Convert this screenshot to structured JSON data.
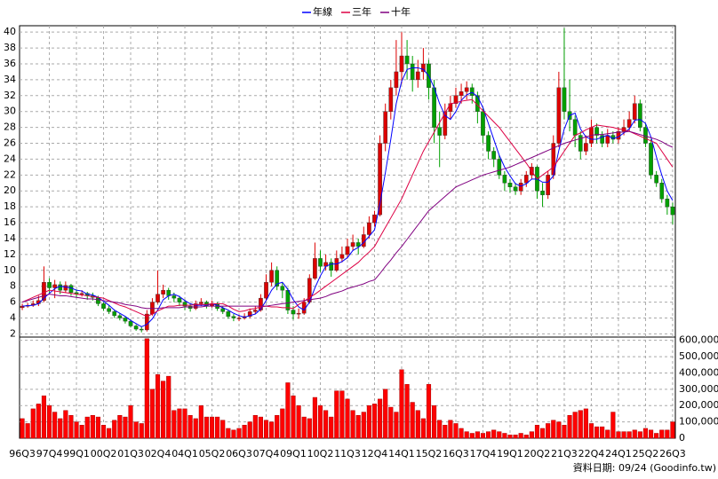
{
  "chart_data": {
    "type": "candlestick",
    "footnote": "資料日期: 09/24 (Goodinfo.tw)",
    "grid": true,
    "up_color": "#dd0000",
    "down_color": "#00a000",
    "categories": [
      "96Q3",
      null,
      null,
      null,
      null,
      "97Q4",
      null,
      null,
      null,
      null,
      "99Q1",
      null,
      null,
      null,
      null,
      "00Q2",
      null,
      null,
      null,
      null,
      "01Q3",
      null,
      null,
      null,
      null,
      "02Q4",
      null,
      null,
      null,
      null,
      "04Q1",
      null,
      null,
      null,
      null,
      "05Q2",
      null,
      null,
      null,
      null,
      "06Q3",
      null,
      null,
      null,
      null,
      "07Q4",
      null,
      null,
      null,
      null,
      "09Q1",
      null,
      null,
      null,
      null,
      "10Q2",
      null,
      null,
      null,
      null,
      "11Q3",
      null,
      null,
      null,
      null,
      "12Q4",
      null,
      null,
      null,
      null,
      "14Q1",
      null,
      null,
      null,
      null,
      "15Q2",
      null,
      null,
      null,
      null,
      "16Q3",
      null,
      null,
      null,
      null,
      "17Q4",
      null,
      null,
      null,
      null,
      "19Q1",
      null,
      null,
      null,
      null,
      "20Q2",
      null,
      null,
      null,
      null,
      "21Q3",
      null,
      null,
      null,
      null,
      "22Q4",
      null,
      null,
      null,
      null,
      "24Q1",
      null,
      null,
      null,
      null,
      "25Q2",
      null,
      null,
      null,
      null,
      "26Q3"
    ],
    "ohlc": [
      [
        5.3,
        5.8,
        5.0,
        5.5
      ],
      [
        5.5,
        5.9,
        5.3,
        5.6
      ],
      [
        5.6,
        6.2,
        5.4,
        5.8
      ],
      [
        5.8,
        6.8,
        5.5,
        6.2
      ],
      [
        6.2,
        10.5,
        6.0,
        8.5
      ],
      [
        8.5,
        9.0,
        7.2,
        7.8
      ],
      [
        7.8,
        8.8,
        6.5,
        8.2
      ],
      [
        8.2,
        8.6,
        7.0,
        7.5
      ],
      [
        7.5,
        8.6,
        7.2,
        8.1
      ],
      [
        8.1,
        8.3,
        6.8,
        7.2
      ],
      [
        7.2,
        7.6,
        6.6,
        7.0
      ],
      [
        7.0,
        7.5,
        6.7,
        7.1
      ],
      [
        7.1,
        7.3,
        6.3,
        6.8
      ],
      [
        6.8,
        7.2,
        6.2,
        6.6
      ],
      [
        6.6,
        6.8,
        5.5,
        5.8
      ],
      [
        5.8,
        6.0,
        4.9,
        5.2
      ],
      [
        5.2,
        5.6,
        4.5,
        4.8
      ],
      [
        4.8,
        5.0,
        4.0,
        4.3
      ],
      [
        4.3,
        4.6,
        3.7,
        4.0
      ],
      [
        4.0,
        4.2,
        3.3,
        3.6
      ],
      [
        3.6,
        3.8,
        2.8,
        3.0
      ],
      [
        3.0,
        3.2,
        2.4,
        2.6
      ],
      [
        2.6,
        2.9,
        2.2,
        2.5
      ],
      [
        2.5,
        5.0,
        2.3,
        4.5
      ],
      [
        4.5,
        6.5,
        4.3,
        6.0
      ],
      [
        6.0,
        10.0,
        5.8,
        7.0
      ],
      [
        7.0,
        8.2,
        6.5,
        7.5
      ],
      [
        7.5,
        7.8,
        6.3,
        6.8
      ],
      [
        6.8,
        7.2,
        6.0,
        6.5
      ],
      [
        6.5,
        6.8,
        5.5,
        6.0
      ],
      [
        6.0,
        6.3,
        5.0,
        5.5
      ],
      [
        5.5,
        5.8,
        4.8,
        5.2
      ],
      [
        5.2,
        6.2,
        5.0,
        5.8
      ],
      [
        5.8,
        6.5,
        5.5,
        6.0
      ],
      [
        6.0,
        6.2,
        5.2,
        5.5
      ],
      [
        5.5,
        6.2,
        5.3,
        5.8
      ],
      [
        5.8,
        6.0,
        4.9,
        5.2
      ],
      [
        5.2,
        5.5,
        4.5,
        4.8
      ],
      [
        4.8,
        5.0,
        3.9,
        4.2
      ],
      [
        4.2,
        4.5,
        3.6,
        4.0
      ],
      [
        4.0,
        4.4,
        3.6,
        4.0
      ],
      [
        4.0,
        4.6,
        3.8,
        4.2
      ],
      [
        4.2,
        5.2,
        4.0,
        4.8
      ],
      [
        4.8,
        5.5,
        4.5,
        5.0
      ],
      [
        5.0,
        7.0,
        4.8,
        6.5
      ],
      [
        6.5,
        9.5,
        6.2,
        8.5
      ],
      [
        8.5,
        11.0,
        8.0,
        10.0
      ],
      [
        10.0,
        10.5,
        7.5,
        8.0
      ],
      [
        8.0,
        8.5,
        6.5,
        7.5
      ],
      [
        7.5,
        7.8,
        4.5,
        5.0
      ],
      [
        5.0,
        5.5,
        3.8,
        4.5
      ],
      [
        4.5,
        5.2,
        3.9,
        4.6
      ],
      [
        4.6,
        6.5,
        4.4,
        6.0
      ],
      [
        6.0,
        9.5,
        5.8,
        9.0
      ],
      [
        9.0,
        13.5,
        8.8,
        11.5
      ],
      [
        11.5,
        12.5,
        9.8,
        10.5
      ],
      [
        10.5,
        12.0,
        10.0,
        11.0
      ],
      [
        11.0,
        11.5,
        9.2,
        10.0
      ],
      [
        10.0,
        12.5,
        9.8,
        11.5
      ],
      [
        11.5,
        13.0,
        11.0,
        12.0
      ],
      [
        12.0,
        14.0,
        11.5,
        13.0
      ],
      [
        13.0,
        14.5,
        12.5,
        13.5
      ],
      [
        13.5,
        14.0,
        12.0,
        13.0
      ],
      [
        13.0,
        15.5,
        12.8,
        14.5
      ],
      [
        14.5,
        16.8,
        14.0,
        16.0
      ],
      [
        16.0,
        17.5,
        15.5,
        17.0
      ],
      [
        17.0,
        27.0,
        16.8,
        26.0
      ],
      [
        26.0,
        31.0,
        25.0,
        30.0
      ],
      [
        30.0,
        34.0,
        29.0,
        33.0
      ],
      [
        33.0,
        39.0,
        32.0,
        35.0
      ],
      [
        35.0,
        40.0,
        33.5,
        37.0
      ],
      [
        37.0,
        39.0,
        34.0,
        36.0
      ],
      [
        36.0,
        37.0,
        32.5,
        34.0
      ],
      [
        34.0,
        36.5,
        33.0,
        35.0
      ],
      [
        35.0,
        38.0,
        34.0,
        36.0
      ],
      [
        36.0,
        36.5,
        31.5,
        33.0
      ],
      [
        33.0,
        34.0,
        26.0,
        28.0
      ],
      [
        28.0,
        30.0,
        23.0,
        27.0
      ],
      [
        27.0,
        31.0,
        26.5,
        30.0
      ],
      [
        30.0,
        32.0,
        29.0,
        31.0
      ],
      [
        31.0,
        33.0,
        30.5,
        32.0
      ],
      [
        32.0,
        33.5,
        31.0,
        32.5
      ],
      [
        32.5,
        33.8,
        31.5,
        33.0
      ],
      [
        33.0,
        33.5,
        31.0,
        32.0
      ],
      [
        32.0,
        32.5,
        28.5,
        30.0
      ],
      [
        30.0,
        30.5,
        26.0,
        27.0
      ],
      [
        27.0,
        27.5,
        24.0,
        25.0
      ],
      [
        25.0,
        25.5,
        23.0,
        24.0
      ],
      [
        24.0,
        24.5,
        21.5,
        22.0
      ],
      [
        22.0,
        22.5,
        20.0,
        21.0
      ],
      [
        21.0,
        21.5,
        19.8,
        20.5
      ],
      [
        20.5,
        21.0,
        19.5,
        20.0
      ],
      [
        20.0,
        21.5,
        19.5,
        21.0
      ],
      [
        21.0,
        22.5,
        20.5,
        22.0
      ],
      [
        22.0,
        23.5,
        21.5,
        23.0
      ],
      [
        23.0,
        23.2,
        19.0,
        20.0
      ],
      [
        20.0,
        21.0,
        18.0,
        19.5
      ],
      [
        19.5,
        22.5,
        19.0,
        22.0
      ],
      [
        22.0,
        27.0,
        21.5,
        26.0
      ],
      [
        26.0,
        35.0,
        25.5,
        33.0
      ],
      [
        33.0,
        40.5,
        29.0,
        30.0
      ],
      [
        30.0,
        34.0,
        27.5,
        29.0
      ],
      [
        29.0,
        29.5,
        25.5,
        27.0
      ],
      [
        27.0,
        27.5,
        24.0,
        25.0
      ],
      [
        25.0,
        27.0,
        24.5,
        26.0
      ],
      [
        26.0,
        29.0,
        25.5,
        28.0
      ],
      [
        28.0,
        28.5,
        26.0,
        27.0
      ],
      [
        27.0,
        27.5,
        25.5,
        26.0
      ],
      [
        26.0,
        27.8,
        25.5,
        27.0
      ],
      [
        27.0,
        27.5,
        26.0,
        26.5
      ],
      [
        26.5,
        28.0,
        26.0,
        27.5
      ],
      [
        27.5,
        29.0,
        27.0,
        28.0
      ],
      [
        28.0,
        30.0,
        27.5,
        29.0
      ],
      [
        29.0,
        32.0,
        28.5,
        31.0
      ],
      [
        31.0,
        31.5,
        27.5,
        28.0
      ],
      [
        28.0,
        28.5,
        25.5,
        26.0
      ],
      [
        26.0,
        26.5,
        21.5,
        22.0
      ],
      [
        22.0,
        22.5,
        20.5,
        21.0
      ],
      [
        21.0,
        21.5,
        18.5,
        19.0
      ],
      [
        19.0,
        19.5,
        17.0,
        18.0
      ],
      [
        18.0,
        18.5,
        15.8,
        17.0
      ]
    ],
    "ylim": [
      1.6,
      40.8
    ],
    "yticks": [
      2,
      4,
      6,
      8,
      10,
      12,
      14,
      16,
      18,
      20,
      22,
      24,
      26,
      28,
      30,
      32,
      34,
      36,
      38,
      40
    ],
    "series": [
      {
        "name": "年線",
        "color": "#0000ff",
        "values": [
          5.5,
          5.55,
          5.6,
          5.8,
          6.5,
          7.1,
          7.7,
          8.0,
          7.9,
          7.8,
          7.5,
          7.4,
          7.0,
          6.9,
          6.6,
          6.1,
          5.6,
          5.0,
          4.6,
          4.2,
          3.7,
          3.3,
          2.9,
          3.2,
          3.9,
          5.0,
          6.3,
          6.8,
          7.0,
          6.7,
          6.2,
          5.8,
          5.6,
          5.6,
          5.6,
          5.8,
          5.6,
          5.3,
          5.0,
          4.6,
          4.3,
          4.1,
          4.3,
          4.5,
          5.1,
          6.2,
          7.5,
          8.3,
          8.5,
          7.6,
          6.3,
          5.4,
          5.0,
          6.0,
          7.8,
          9.3,
          10.5,
          10.8,
          10.8,
          11.1,
          11.6,
          12.5,
          12.9,
          13.5,
          14.3,
          15.1,
          18.4,
          22.3,
          26.5,
          31.0,
          33.8,
          35.3,
          35.5,
          35.5,
          35.3,
          34.5,
          33.0,
          31.0,
          29.5,
          29.0,
          30.0,
          31.4,
          32.1,
          32.4,
          31.9,
          30.5,
          28.5,
          26.5,
          24.5,
          23.0,
          21.9,
          20.9,
          20.6,
          20.9,
          21.5,
          21.5,
          21.1,
          21.1,
          21.9,
          25.1,
          27.8,
          29.5,
          29.8,
          27.8,
          26.8,
          26.5,
          26.5,
          26.8,
          27.0,
          26.6,
          26.8,
          27.3,
          27.8,
          28.9,
          29.0,
          28.5,
          26.8,
          24.3,
          22.0,
          20.0,
          18.8
        ]
      },
      {
        "name": "三年",
        "color": "#dd0044",
        "values": [
          6.0,
          6.3,
          6.6,
          6.9,
          7.2,
          7.5,
          7.4,
          7.3,
          7.2,
          7.1,
          7.0,
          6.9,
          6.8,
          6.7,
          6.6,
          6.5,
          6.2,
          5.9,
          5.6,
          5.4,
          5.1,
          4.8,
          4.5,
          4.2,
          4.5,
          4.9,
          5.2,
          5.5,
          5.5,
          5.6,
          5.6,
          5.6,
          5.7,
          5.7,
          5.7,
          5.8,
          5.8,
          5.8,
          5.5,
          5.1,
          4.8,
          4.9,
          5.1,
          5.2,
          5.4,
          5.5,
          5.4,
          5.4,
          5.3,
          5.3,
          5.2,
          5.7,
          6.1,
          6.6,
          7.0,
          7.5,
          8.0,
          8.5,
          9.0,
          9.5,
          10.0,
          10.5,
          11.0,
          11.7,
          12.3,
          13.0,
          14.2,
          15.4,
          16.6,
          17.8,
          19.0,
          20.5,
          22.0,
          23.5,
          25.0,
          26.2,
          27.4,
          28.6,
          29.8,
          31.0,
          31.1,
          31.3,
          31.4,
          31.5,
          30.8,
          30.1,
          29.4,
          28.7,
          28.0,
          27.1,
          26.2,
          25.3,
          24.4,
          23.5,
          22.5,
          21.5,
          22.0,
          22.5,
          23.0,
          24.0,
          25.0,
          26.0,
          27.0,
          27.3,
          27.7,
          28.0,
          28.3,
          28.2,
          28.1,
          28.0,
          27.8,
          27.7,
          27.5,
          27.2,
          26.9,
          26.6,
          26.3,
          26.0,
          25.0,
          24.0,
          23.0
        ]
      },
      {
        "name": "十年",
        "color": "#800080",
        "values": [
          6.0,
          6.2,
          6.4,
          6.6,
          6.8,
          7.0,
          6.9,
          6.8,
          6.8,
          6.7,
          6.6,
          6.5,
          6.4,
          6.4,
          6.3,
          6.2,
          6.1,
          6.0,
          5.9,
          5.7,
          5.6,
          5.5,
          5.3,
          5.2,
          5.2,
          5.2,
          5.3,
          5.3,
          5.3,
          5.3,
          5.4,
          5.4,
          5.4,
          5.4,
          5.5,
          5.5,
          5.5,
          5.5,
          5.5,
          5.5,
          5.5,
          5.5,
          5.5,
          5.5,
          5.5,
          5.5,
          5.6,
          5.7,
          5.8,
          5.9,
          6.0,
          6.1,
          6.2,
          6.3,
          6.4,
          6.5,
          6.7,
          7.0,
          7.2,
          7.4,
          7.7,
          7.9,
          8.1,
          8.3,
          8.6,
          8.8,
          9.6,
          10.5,
          11.3,
          12.2,
          13.0,
          13.9,
          14.8,
          15.7,
          16.6,
          17.5,
          18.1,
          18.7,
          19.3,
          19.9,
          20.5,
          20.8,
          21.1,
          21.4,
          21.7,
          22.0,
          22.2,
          22.4,
          22.6,
          22.8,
          23.0,
          23.3,
          23.6,
          23.9,
          24.2,
          24.5,
          24.8,
          25.1,
          25.4,
          25.7,
          26.0,
          26.2,
          26.4,
          26.6,
          26.8,
          27.0,
          27.1,
          27.1,
          27.2,
          27.3,
          27.4,
          27.4,
          27.5,
          27.3,
          27.1,
          26.9,
          26.7,
          26.5,
          26.2,
          25.8,
          25.5
        ]
      }
    ],
    "volume": {
      "axis": "y2",
      "color": "#ff0000",
      "values": [
        120000,
        90000,
        180000,
        210000,
        260000,
        200000,
        160000,
        120000,
        170000,
        140000,
        100000,
        80000,
        130000,
        140000,
        130000,
        80000,
        60000,
        110000,
        140000,
        130000,
        200000,
        100000,
        90000,
        610000,
        300000,
        390000,
        350000,
        380000,
        170000,
        180000,
        180000,
        140000,
        120000,
        200000,
        130000,
        130000,
        130000,
        110000,
        60000,
        50000,
        60000,
        80000,
        100000,
        140000,
        130000,
        110000,
        100000,
        140000,
        180000,
        340000,
        260000,
        200000,
        130000,
        120000,
        250000,
        200000,
        170000,
        130000,
        290000,
        290000,
        240000,
        170000,
        140000,
        160000,
        200000,
        210000,
        240000,
        300000,
        190000,
        160000,
        420000,
        330000,
        220000,
        170000,
        120000,
        330000,
        200000,
        110000,
        80000,
        110000,
        90000,
        60000,
        40000,
        30000,
        40000,
        30000,
        40000,
        50000,
        40000,
        30000,
        20000,
        20000,
        30000,
        20000,
        40000,
        80000,
        60000,
        90000,
        110000,
        100000,
        80000,
        140000,
        160000,
        170000,
        180000,
        90000,
        70000,
        70000,
        50000,
        160000,
        40000,
        40000,
        40000,
        50000,
        40000,
        60000,
        50000,
        30000,
        50000,
        50000,
        100000
      ]
    },
    "y2lim": [
      0,
      620000
    ],
    "y2ticks": [
      0,
      {
        "value": 100000,
        "label": "100,000"
      },
      {
        "value": 200000,
        "label": "200,000"
      },
      {
        "value": 300000,
        "label": "300,000"
      },
      {
        "value": 400000,
        "label": "400,000"
      },
      {
        "value": 500000,
        "label": "500,000"
      },
      {
        "value": 600000,
        "label": "600,000"
      }
    ]
  }
}
